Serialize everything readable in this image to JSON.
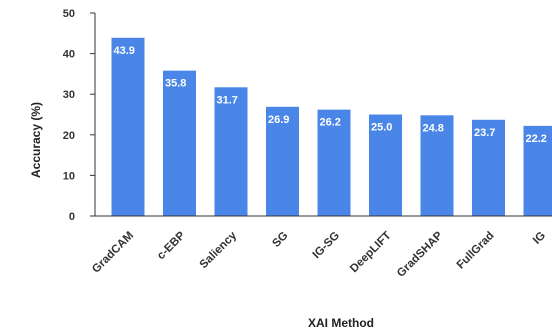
{
  "chart_data": {
    "type": "bar",
    "title": "",
    "xlabel": "XAI Method",
    "ylabel": "Accuracy (%)",
    "categories": [
      "GradCAM",
      "c-EBP",
      "Saliency",
      "SG",
      "IG-SG",
      "DeepLIFT",
      "GradSHAP",
      "FullGrad",
      "IG"
    ],
    "values": [
      43.9,
      35.8,
      31.7,
      26.9,
      26.2,
      25.0,
      24.8,
      23.7,
      22.2
    ],
    "data_labels": [
      "43.9",
      "35.8",
      "31.7",
      "26.9",
      "26.2",
      "25.0",
      "24.8",
      "23.7",
      "22.2"
    ],
    "ylim": [
      0,
      50
    ],
    "yticks": [
      "0",
      "10",
      "20",
      "30",
      "40",
      "50"
    ],
    "grid": false,
    "legend": "none",
    "bar_color": "#4a86e8",
    "axis_color": "#333333"
  }
}
